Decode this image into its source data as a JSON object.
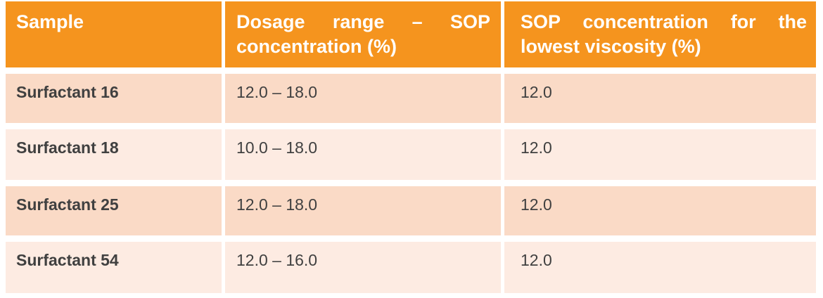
{
  "chart_data": {
    "type": "table",
    "title": "",
    "columns": [
      "Sample",
      "Dosage range – SOP concentration (%)",
      "SOP concentration for the lowest viscosity (%)"
    ],
    "rows": [
      [
        "Surfactant 16",
        "12.0 – 18.0",
        "12.0"
      ],
      [
        "Surfactant 18",
        "10.0 – 18.0",
        "12.0"
      ],
      [
        "Surfactant 25",
        "12.0 – 18.0",
        "12.0"
      ],
      [
        "Surfactant 54",
        "12.0 – 16.0",
        "12.0"
      ]
    ],
    "layout_hints": {
      "header_style": "solid orange band, white bold text, justified two-line headers",
      "body_style": "banded rows alternating dark/light peach, white gutters between cells"
    }
  },
  "table": {
    "header": {
      "col1": {
        "label": "Sample"
      },
      "col2": {
        "line1": "Dosage range – SOP",
        "line2": "concentration (%)"
      },
      "col3": {
        "line1": "SOP concentration for the",
        "line2": "lowest viscosity (%)"
      }
    }
  },
  "colors": {
    "canvas_bg": "#FFFFFF",
    "header_bg": "#F5941E",
    "header_text": "#FFFFFF",
    "row_dark_bg": "#FADAC6",
    "row_light_bg": "#FDEBE2",
    "body_text": "#404040"
  }
}
